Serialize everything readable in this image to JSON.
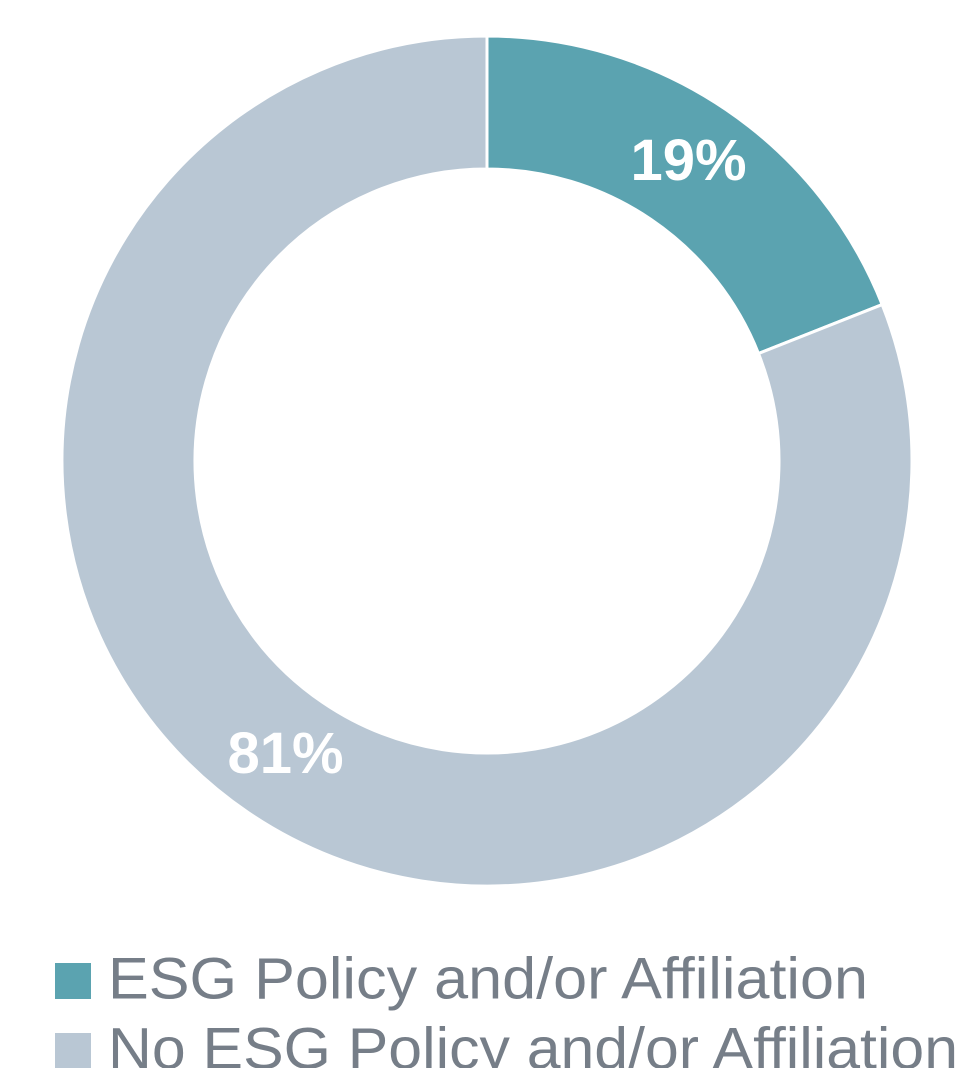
{
  "chart_data": {
    "type": "donut",
    "categories": [
      "ESG Policy and/or Affiliation",
      "No ESG Policy and/or Affiliation"
    ],
    "values": [
      19,
      81
    ],
    "value_labels": [
      "19%",
      "81%"
    ],
    "colors": [
      "#5ba3b0",
      "#b9c7d4"
    ]
  }
}
